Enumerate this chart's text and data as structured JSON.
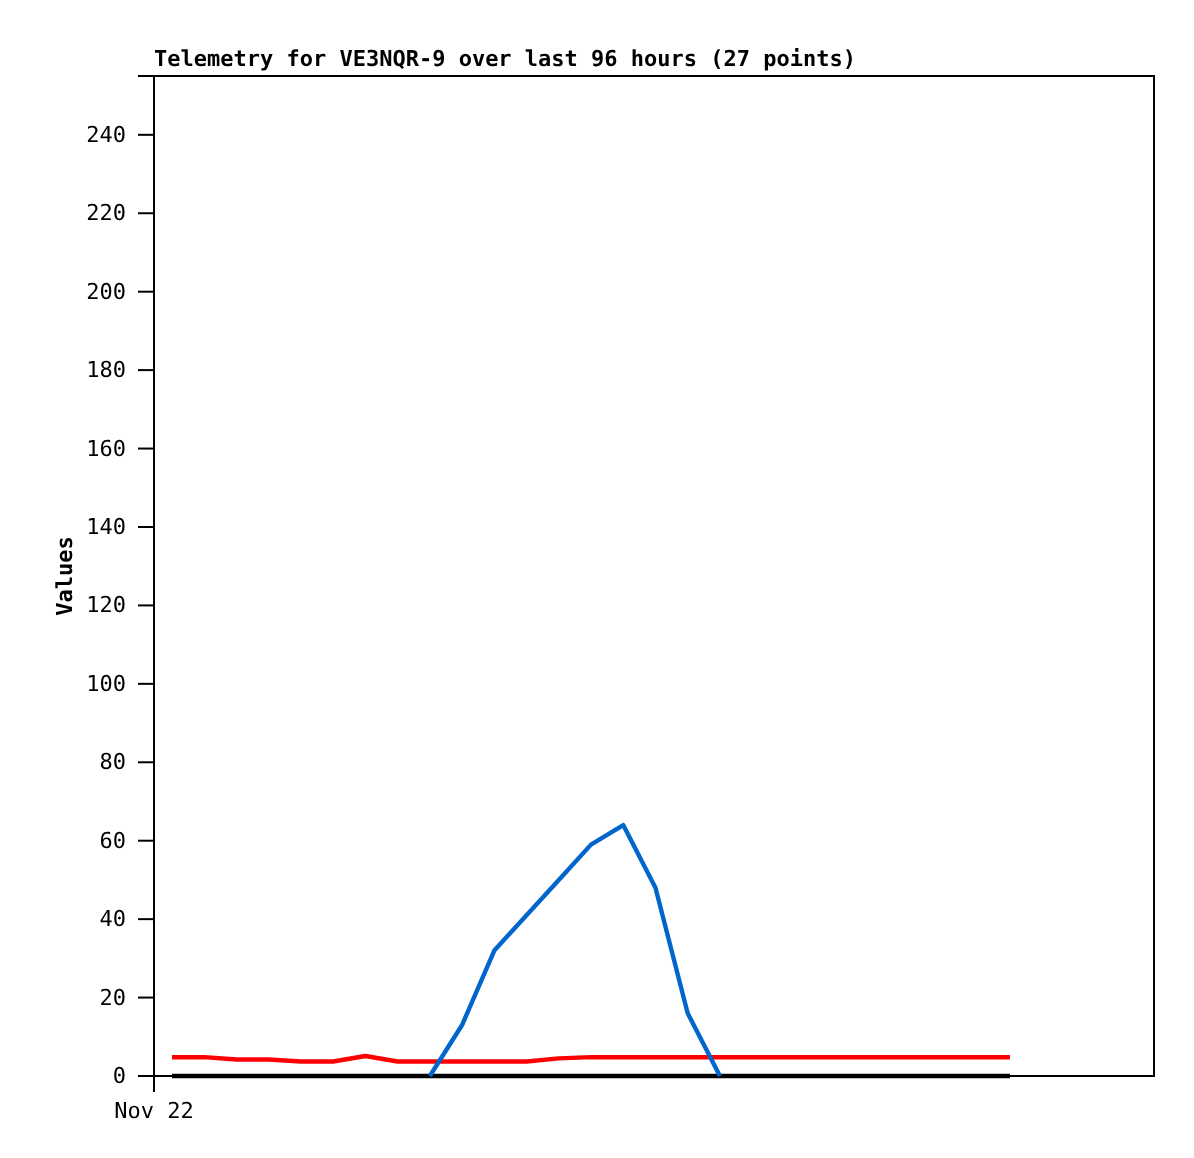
{
  "chart_data": {
    "type": "line",
    "title": "Telemetry for VE3NQR-9 over last 96 hours (27 points)",
    "ylabel": "Values",
    "annotations": [
      "Nov 22"
    ],
    "categories": [
      null,
      null,
      null,
      null,
      null,
      null,
      null,
      null,
      null,
      null,
      null,
      null,
      null,
      null,
      null,
      null,
      null,
      null,
      null,
      null,
      null,
      null,
      null,
      null,
      null,
      null,
      null
    ],
    "ylim": [
      0,
      255
    ],
    "yticks": [
      0,
      20,
      40,
      60,
      80,
      100,
      120,
      140,
      160,
      180,
      200,
      220,
      240
    ],
    "tick_labels": "y",
    "line_style": "solid",
    "series": [
      {
        "color": "#ff0000",
        "values": [
          4.8,
          4.8,
          4.2,
          4.2,
          3.7,
          3.7,
          5.1,
          3.7,
          3.7,
          3.7,
          3.7,
          3.7,
          4.5,
          4.8,
          4.8,
          4.8,
          4.8,
          4.8,
          4.8,
          4.8,
          4.8,
          4.8,
          4.8,
          4.8,
          4.8,
          4.8,
          4.8
        ]
      },
      {
        "color": "#000000",
        "values": [
          0,
          0,
          0,
          0,
          0,
          0,
          0,
          0,
          0,
          0,
          0,
          0,
          0,
          0,
          0,
          0,
          0,
          0,
          0,
          0,
          0,
          0,
          0,
          0,
          0,
          0,
          0
        ]
      },
      {
        "color": "#0066cc",
        "values": [
          null,
          null,
          null,
          null,
          null,
          null,
          null,
          null,
          0,
          13,
          32,
          41,
          50,
          59,
          64,
          48,
          16,
          0,
          null,
          null,
          null,
          null,
          null,
          null,
          null,
          null,
          null
        ]
      }
    ]
  }
}
